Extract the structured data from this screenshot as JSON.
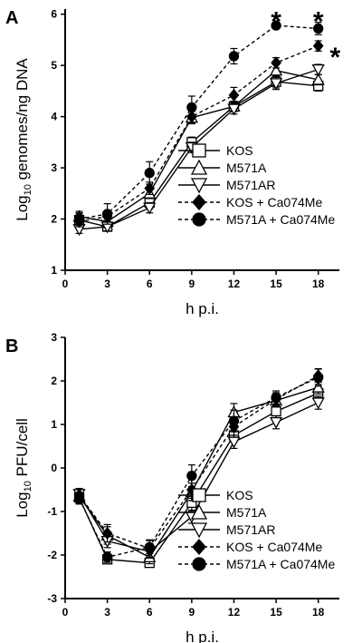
{
  "chart_data": [
    {
      "type": "line",
      "panel_label": "A",
      "xlabel": "h p.i.",
      "ylabel_base": "Log",
      "ylabel_sub": "10",
      "ylabel_rest": " genomes/ng DNA",
      "x": [
        1,
        3,
        6,
        9,
        12,
        15,
        18
      ],
      "xticks": [
        0,
        3,
        6,
        9,
        12,
        15,
        18
      ],
      "yticks": [
        1,
        2,
        3,
        4,
        5,
        6
      ],
      "xlim": [
        0,
        19.5
      ],
      "ylim": [
        1,
        6.1
      ],
      "series": [
        {
          "name": "KOS",
          "marker": "open-square",
          "dash": false,
          "values": [
            1.98,
            1.85,
            2.32,
            3.5,
            4.2,
            4.68,
            4.6
          ],
          "errors": [
            0.12,
            0.08,
            0.12,
            0.1,
            0.1,
            0.12,
            0.1
          ]
        },
        {
          "name": "M571A",
          "marker": "open-triangle-up",
          "dash": false,
          "values": [
            2.05,
            1.95,
            2.5,
            3.98,
            4.2,
            4.9,
            4.72
          ],
          "errors": [
            0.1,
            0.12,
            0.1,
            0.12,
            0.1,
            0.12,
            0.1
          ]
        },
        {
          "name": "M571AR",
          "marker": "open-triangle-down",
          "dash": false,
          "values": [
            1.8,
            1.85,
            2.22,
            3.4,
            4.15,
            4.65,
            4.92
          ],
          "errors": [
            0.08,
            0.08,
            0.1,
            0.1,
            0.1,
            0.12,
            0.1
          ]
        },
        {
          "name": "KOS + Ca074Me",
          "marker": "filled-diamond",
          "dash": true,
          "values": [
            1.95,
            2.05,
            2.6,
            4.0,
            4.42,
            5.05,
            5.38
          ],
          "errors": [
            0.1,
            0.1,
            0.12,
            0.12,
            0.15,
            0.1,
            0.1
          ]
        },
        {
          "name": "M571A + Ca074Me",
          "marker": "filled-circle",
          "dash": true,
          "values": [
            2.0,
            2.1,
            2.9,
            4.18,
            5.18,
            5.78,
            5.72
          ],
          "errors": [
            0.12,
            0.2,
            0.22,
            0.22,
            0.15,
            0.05,
            0.12
          ]
        }
      ],
      "annotations": [
        {
          "text": "*",
          "x": 15,
          "y": 6.0
        },
        {
          "text": "*",
          "x": 18,
          "y": 6.0
        },
        {
          "text": "*",
          "x": 19.2,
          "y": 5.3
        }
      ]
    },
    {
      "type": "line",
      "panel_label": "B",
      "xlabel": "h p.i.",
      "ylabel_base": "Log",
      "ylabel_sub": "10",
      "ylabel_rest": " PFU/cell",
      "x": [
        1,
        3,
        6,
        9,
        12,
        15,
        18
      ],
      "xticks": [
        0,
        3,
        6,
        9,
        12,
        15,
        18
      ],
      "yticks": [
        -3,
        -2,
        -1,
        0,
        1,
        2,
        3
      ],
      "xlim": [
        0,
        19.5
      ],
      "ylim": [
        -3,
        3
      ],
      "series": [
        {
          "name": "KOS",
          "marker": "open-square",
          "dash": false,
          "values": [
            -0.68,
            -2.1,
            -2.18,
            -0.8,
            0.75,
            1.3,
            1.72
          ],
          "errors": [
            0.15,
            0.08,
            0.1,
            0.2,
            0.15,
            0.15,
            0.2
          ]
        },
        {
          "name": "M571A",
          "marker": "open-triangle-up",
          "dash": false,
          "values": [
            -0.65,
            -1.55,
            -2.05,
            -0.55,
            1.28,
            1.55,
            1.85
          ],
          "errors": [
            0.15,
            0.2,
            0.15,
            0.2,
            0.2,
            0.15,
            0.15
          ]
        },
        {
          "name": "M571AR",
          "marker": "open-triangle-down",
          "dash": false,
          "values": [
            -0.6,
            -1.68,
            -1.92,
            -1.12,
            0.6,
            1.05,
            1.5
          ],
          "errors": [
            0.12,
            0.15,
            0.15,
            0.15,
            0.15,
            0.15,
            0.15
          ]
        },
        {
          "name": "KOS + Ca074Me",
          "marker": "filled-diamond",
          "dash": true,
          "values": [
            -0.62,
            -1.5,
            -1.85,
            -0.5,
            0.95,
            1.58,
            2.12
          ],
          "errors": [
            0.15,
            0.2,
            0.2,
            0.25,
            0.2,
            0.15,
            0.15
          ]
        },
        {
          "name": "M571A + Ca074Me",
          "marker": "filled-circle",
          "dash": true,
          "values": [
            -0.7,
            -2.05,
            -1.82,
            -0.18,
            1.08,
            1.62,
            2.08
          ],
          "errors": [
            0.12,
            0.12,
            0.15,
            0.25,
            0.25,
            0.15,
            0.2
          ]
        }
      ]
    }
  ]
}
